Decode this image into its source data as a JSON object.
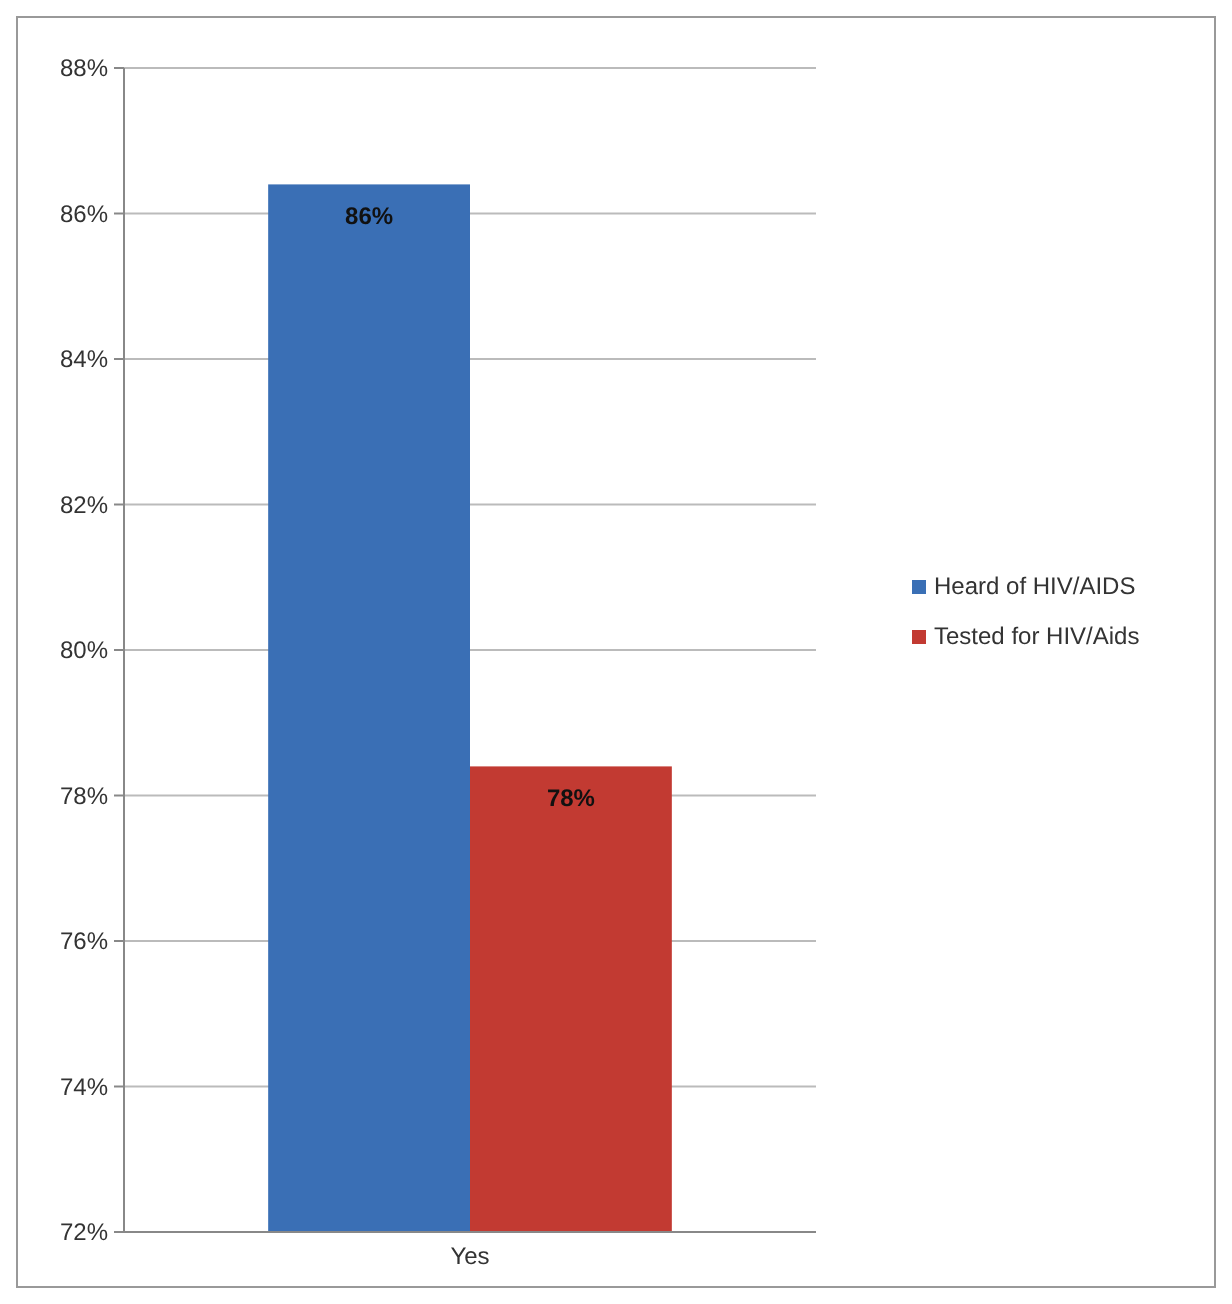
{
  "chart_data": {
    "type": "bar",
    "categories": [
      "Yes"
    ],
    "series": [
      {
        "name": "Heard of HIV/AIDS",
        "color": "#3a6fb5",
        "values": [
          86.4
        ],
        "value_labels": [
          "86%"
        ]
      },
      {
        "name": "Tested for HIV/Aids",
        "color": "#c23a32",
        "values": [
          78.4
        ],
        "value_labels": [
          "78%"
        ]
      }
    ],
    "ylim": [
      72,
      88
    ],
    "yticks": [
      {
        "value": 72,
        "label": "72%"
      },
      {
        "value": 74,
        "label": "74%"
      },
      {
        "value": 76,
        "label": "76%"
      },
      {
        "value": 78,
        "label": "78%"
      },
      {
        "value": 80,
        "label": "80%"
      },
      {
        "value": 82,
        "label": "82%"
      },
      {
        "value": 84,
        "label": "84%"
      },
      {
        "value": 86,
        "label": "86%"
      },
      {
        "value": 88,
        "label": "88%"
      }
    ],
    "grid": "y",
    "legend": "right"
  }
}
